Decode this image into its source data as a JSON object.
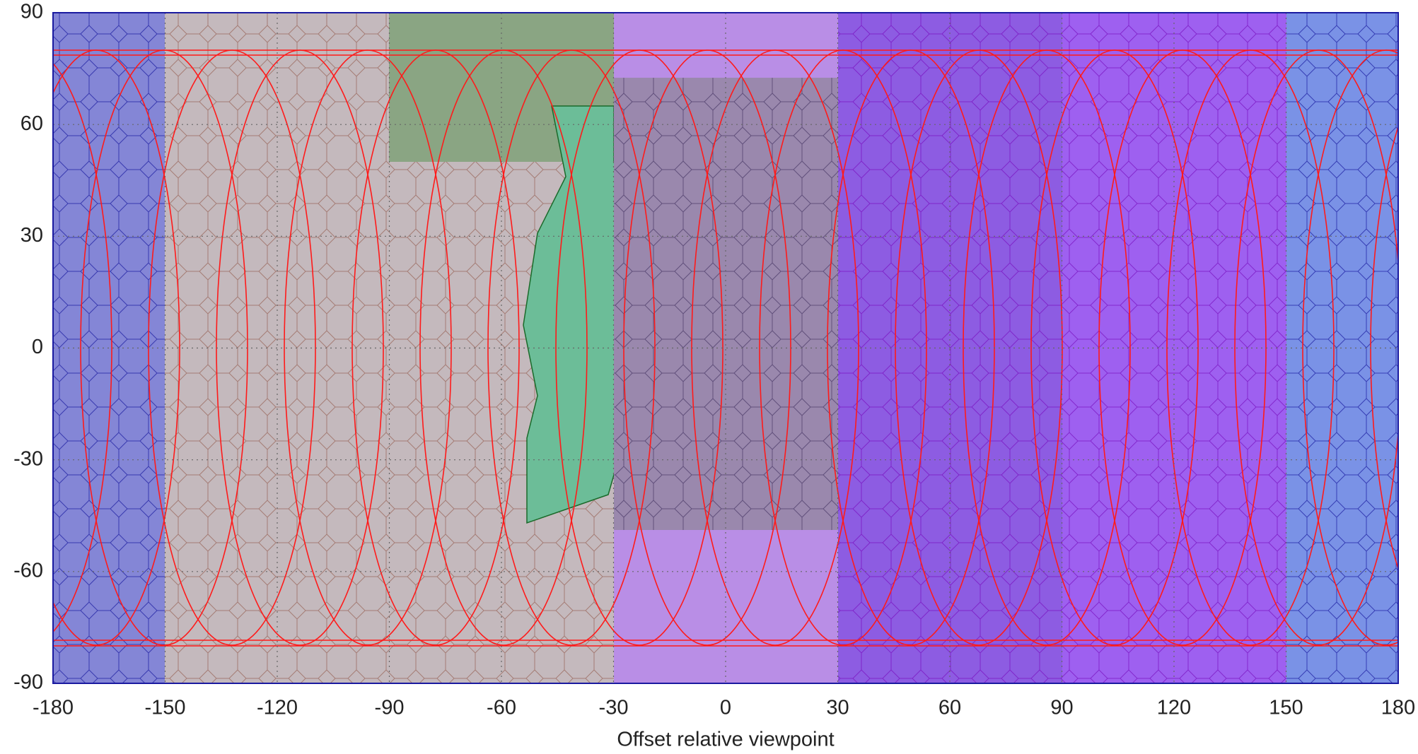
{
  "chart_data": {
    "type": "map",
    "xlabel": "Offset relative viewpoint",
    "xlim": [
      -180,
      180
    ],
    "ylim": [
      -90,
      90
    ],
    "xticks": [
      -180,
      -150,
      -120,
      -90,
      -60,
      -30,
      0,
      30,
      60,
      90,
      120,
      150,
      180
    ],
    "yticks": [
      -90,
      -60,
      -30,
      0,
      30,
      60,
      90
    ],
    "grid": true
  }
}
